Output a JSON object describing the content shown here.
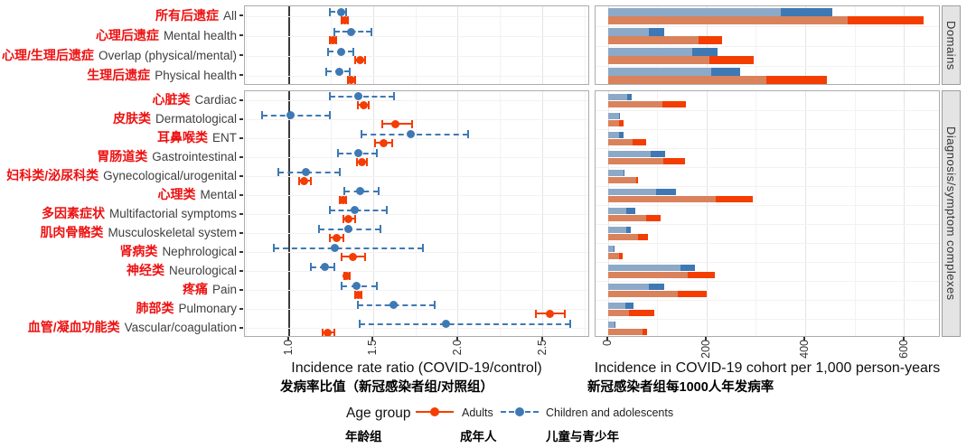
{
  "colors": {
    "adults": "#F43D00",
    "adults_light": "#D9825C",
    "children": "#3E79B4",
    "children_light": "#8DA9C8",
    "label_red": "#EE1111",
    "label_gray": "#3F3F3F",
    "grid_major": "#E4E4E4",
    "grid_minor": "#F2F2F2",
    "refline": "#3A3A3A",
    "tick": "#333333",
    "panel_border": "#ACACAC",
    "strip_bg": "#E4E4E4"
  },
  "strips": {
    "top": "Domains",
    "bottom": "Diagnosis/symptom complexes"
  },
  "axes": {
    "left_title_en": "Incidence rate ratio (COVID-19/control)",
    "left_title_zh": "发病率比值（新冠感染者组/对照组）",
    "right_title_en": "Incidence in COVID-19 cohort per 1,000 person-years",
    "right_title_zh": "新冠感染者组每1000人年发病率"
  },
  "legend": {
    "title_en": "Age group",
    "title_zh": "年龄组",
    "adults_en": "Adults",
    "adults_zh": "成年人",
    "children_en": "Children and adolescents",
    "children_zh": "儿童与青少年"
  },
  "chart_data": {
    "type": "combo",
    "panels": [
      {
        "id": "irr",
        "type": "scatter",
        "xlabel": "Incidence rate ratio (COVID-19/control)",
        "xlim": [
          0.74,
          2.78
        ],
        "xticks": [
          {
            "v": 1.0,
            "label": "1.0"
          },
          {
            "v": 1.5,
            "label": "1.5"
          },
          {
            "v": 2.0,
            "label": "2.0"
          },
          {
            "v": 2.5,
            "label": "2.5"
          }
        ],
        "grid_major": [
          1.5,
          2.0,
          2.5
        ],
        "grid_minor": [
          0.75,
          1.25,
          1.75,
          2.25,
          2.75
        ],
        "refline_x": 1.0
      },
      {
        "id": "incidence",
        "type": "bar",
        "xlabel": "Incidence in COVID-19 cohort per 1,000 person-years",
        "xlim": [
          -26,
          674
        ],
        "xticks": [
          {
            "v": 0,
            "label": "0"
          },
          {
            "v": 200,
            "label": "200"
          },
          {
            "v": 400,
            "label": "400"
          },
          {
            "v": 600,
            "label": "600"
          }
        ],
        "grid_major": [
          0,
          200,
          400,
          600
        ],
        "grid_minor": [
          100,
          300,
          500
        ],
        "bar_note": "light segment = 0..base, saturated segment = base..total (per 1,000 person-years)"
      }
    ],
    "series_legend": [
      "Adults",
      "Children and adolescents"
    ],
    "groups": [
      {
        "strip": "Domains",
        "rows": [
          {
            "zh": "所有后遗症",
            "en": "All",
            "irr_adults": {
              "v": 1.33,
              "lo": 1.31,
              "hi": 1.35
            },
            "irr_children": {
              "v": 1.31,
              "lo": 1.24,
              "hi": 1.34
            },
            "bar_adults": {
              "base": 485,
              "total": 640
            },
            "bar_children": {
              "base": 350,
              "total": 455
            }
          },
          {
            "zh": "心理后遗症",
            "en": "Mental health",
            "irr_adults": {
              "v": 1.26,
              "lo": 1.24,
              "hi": 1.28
            },
            "irr_children": {
              "v": 1.37,
              "lo": 1.27,
              "hi": 1.49
            },
            "bar_adults": {
              "base": 182,
              "total": 230
            },
            "bar_children": {
              "base": 82,
              "total": 113
            }
          },
          {
            "zh": "心理/生理后遗症",
            "en": "Overlap (physical/mental)",
            "irr_adults": {
              "v": 1.42,
              "lo": 1.39,
              "hi": 1.45
            },
            "irr_children": {
              "v": 1.31,
              "lo": 1.23,
              "hi": 1.38
            },
            "bar_adults": {
              "base": 205,
              "total": 295
            },
            "bar_children": {
              "base": 170,
              "total": 222
            }
          },
          {
            "zh": "生理后遗症",
            "en": "Physical health",
            "irr_adults": {
              "v": 1.37,
              "lo": 1.35,
              "hi": 1.39
            },
            "irr_children": {
              "v": 1.3,
              "lo": 1.22,
              "hi": 1.36
            },
            "bar_adults": {
              "base": 320,
              "total": 443
            },
            "bar_children": {
              "base": 208,
              "total": 268
            }
          }
        ]
      },
      {
        "strip": "Diagnosis/symptom complexes",
        "rows": [
          {
            "zh": "心脏类",
            "en": "Cardiac",
            "irr_adults": {
              "v": 1.44,
              "lo": 1.41,
              "hi": 1.47
            },
            "irr_children": {
              "v": 1.41,
              "lo": 1.24,
              "hi": 1.62
            },
            "bar_adults": {
              "base": 110,
              "total": 157
            },
            "bar_children": {
              "base": 39,
              "total": 47
            }
          },
          {
            "zh": "皮肤类",
            "en": "Dermatological",
            "irr_adults": {
              "v": 1.63,
              "lo": 1.55,
              "hi": 1.73
            },
            "irr_children": {
              "v": 1.01,
              "lo": 0.84,
              "hi": 1.24
            },
            "bar_adults": {
              "base": 21,
              "total": 30
            },
            "bar_children": {
              "base": 21,
              "total": 23
            }
          },
          {
            "zh": "耳鼻喉类",
            "en": "ENT",
            "irr_adults": {
              "v": 1.56,
              "lo": 1.51,
              "hi": 1.61
            },
            "irr_children": {
              "v": 1.72,
              "lo": 1.43,
              "hi": 2.06
            },
            "bar_adults": {
              "base": 50,
              "total": 77
            },
            "bar_children": {
              "base": 21,
              "total": 30
            }
          },
          {
            "zh": "胃肠道类",
            "en": "Gastrointestinal",
            "irr_adults": {
              "v": 1.43,
              "lo": 1.4,
              "hi": 1.46
            },
            "irr_children": {
              "v": 1.41,
              "lo": 1.29,
              "hi": 1.52
            },
            "bar_adults": {
              "base": 111,
              "total": 156
            },
            "bar_children": {
              "base": 85,
              "total": 115
            }
          },
          {
            "zh": "妇科类/泌尿科类",
            "en": "Gynecological/urogenital",
            "irr_adults": {
              "v": 1.09,
              "lo": 1.06,
              "hi": 1.13
            },
            "irr_children": {
              "v": 1.1,
              "lo": 0.94,
              "hi": 1.3
            },
            "bar_adults": {
              "base": 56,
              "total": 61
            },
            "bar_children": {
              "base": 30,
              "total": 32
            }
          },
          {
            "zh": "心理类",
            "en": "Mental",
            "irr_adults": {
              "v": 1.32,
              "lo": 1.3,
              "hi": 1.34
            },
            "irr_children": {
              "v": 1.42,
              "lo": 1.33,
              "hi": 1.53
            },
            "bar_adults": {
              "base": 218,
              "total": 292
            },
            "bar_children": {
              "base": 96,
              "total": 138
            }
          },
          {
            "zh": "多因素症状",
            "en": "Multifactorial symptoms",
            "irr_adults": {
              "v": 1.35,
              "lo": 1.32,
              "hi": 1.39
            },
            "irr_children": {
              "v": 1.39,
              "lo": 1.24,
              "hi": 1.58
            },
            "bar_adults": {
              "base": 77,
              "total": 106
            },
            "bar_children": {
              "base": 37,
              "total": 54
            }
          },
          {
            "zh": "肌肉骨骼类",
            "en": "Musculoskeletal system",
            "irr_adults": {
              "v": 1.28,
              "lo": 1.24,
              "hi": 1.32
            },
            "irr_children": {
              "v": 1.35,
              "lo": 1.18,
              "hi": 1.54
            },
            "bar_adults": {
              "base": 60,
              "total": 80
            },
            "bar_children": {
              "base": 36,
              "total": 46
            }
          },
          {
            "zh": "肾病类",
            "en": "Nephrological",
            "irr_adults": {
              "v": 1.38,
              "lo": 1.31,
              "hi": 1.45
            },
            "irr_children": {
              "v": 1.27,
              "lo": 0.91,
              "hi": 1.79
            },
            "bar_adults": {
              "base": 21,
              "total": 29
            },
            "bar_children": {
              "base": 10,
              "total": 13
            }
          },
          {
            "zh": "神经类",
            "en": "Neurological",
            "irr_adults": {
              "v": 1.34,
              "lo": 1.33,
              "hi": 1.36
            },
            "irr_children": {
              "v": 1.21,
              "lo": 1.13,
              "hi": 1.27
            },
            "bar_adults": {
              "base": 161,
              "total": 216
            },
            "bar_children": {
              "base": 146,
              "total": 175
            }
          },
          {
            "zh": "疼痛",
            "en": "Pain",
            "irr_adults": {
              "v": 1.41,
              "lo": 1.39,
              "hi": 1.43
            },
            "irr_children": {
              "v": 1.4,
              "lo": 1.31,
              "hi": 1.52
            },
            "bar_adults": {
              "base": 141,
              "total": 199
            },
            "bar_children": {
              "base": 82,
              "total": 114
            }
          },
          {
            "zh": "肺部类",
            "en": "Pulmonary",
            "irr_adults": {
              "v": 2.54,
              "lo": 2.46,
              "hi": 2.63
            },
            "irr_children": {
              "v": 1.62,
              "lo": 1.41,
              "hi": 1.86
            },
            "bar_adults": {
              "base": 41,
              "total": 94
            },
            "bar_children": {
              "base": 35,
              "total": 51
            }
          },
          {
            "zh": "血管/凝血功能类",
            "en": "Vascular/coagulation",
            "irr_adults": {
              "v": 1.23,
              "lo": 1.2,
              "hi": 1.27
            },
            "irr_children": {
              "v": 1.93,
              "lo": 1.42,
              "hi": 2.66
            },
            "bar_adults": {
              "base": 70,
              "total": 79
            },
            "bar_children": {
              "base": 12,
              "total": 15
            }
          }
        ]
      }
    ]
  }
}
